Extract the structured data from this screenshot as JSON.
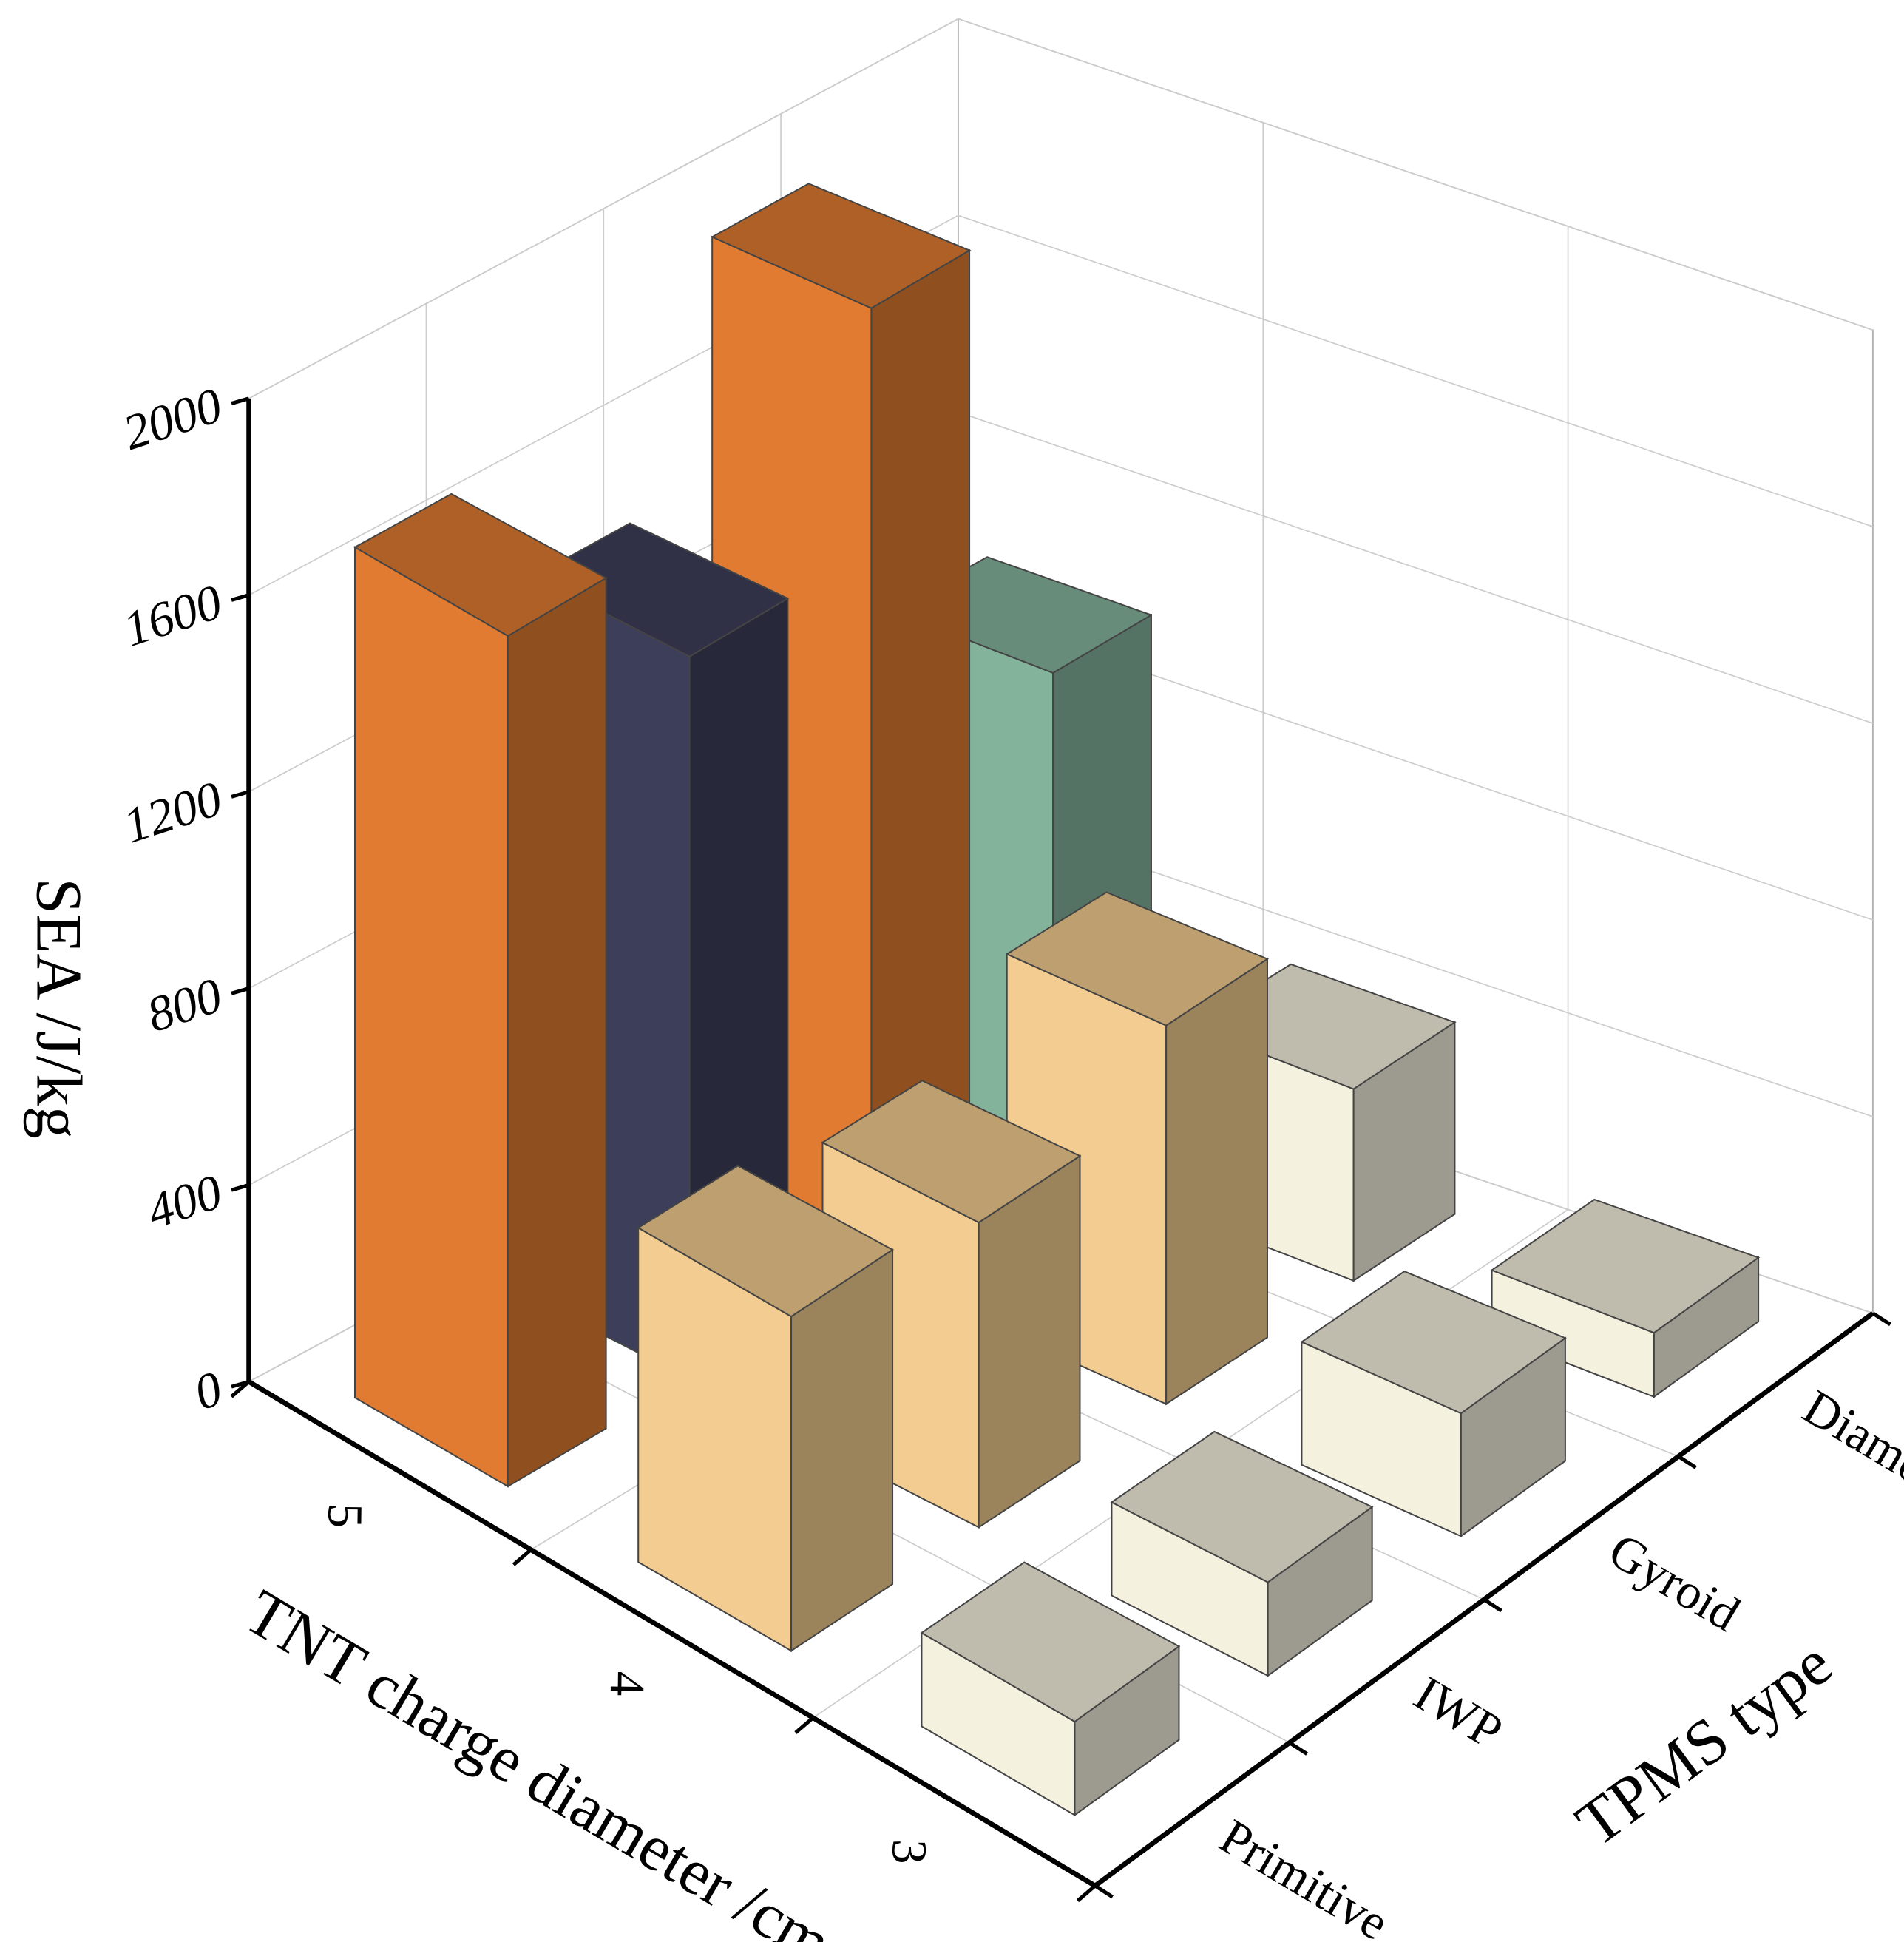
{
  "chart_data": {
    "type": "bar3d",
    "x_label": "TNT charge diameter /cm",
    "y_label": "TPMS type",
    "z_label": "SEA /J/kg",
    "categories": [
      "5",
      "4",
      "3"
    ],
    "y_categories": [
      "Primitive",
      "IWP",
      "Gyroid",
      "Diamond"
    ],
    "values": [
      [
        1730,
        1470,
        1960,
        1000
      ],
      [
        680,
        620,
        770,
        390
      ],
      [
        190,
        190,
        250,
        130
      ]
    ],
    "colors": [
      [
        "#e07b31",
        "#3d3f5a",
        "#e07b31",
        "#84b39c"
      ],
      [
        "#f2cc90",
        "#f2cc90",
        "#f2cc90",
        "#f5f1df"
      ],
      [
        "#f5f1df",
        "#f5f1df",
        "#f5f1df",
        "#f5f1df"
      ]
    ],
    "zlim": [
      0,
      2000
    ],
    "zticks": [
      0,
      400,
      800,
      1200,
      1600,
      2000
    ],
    "grid": true
  }
}
